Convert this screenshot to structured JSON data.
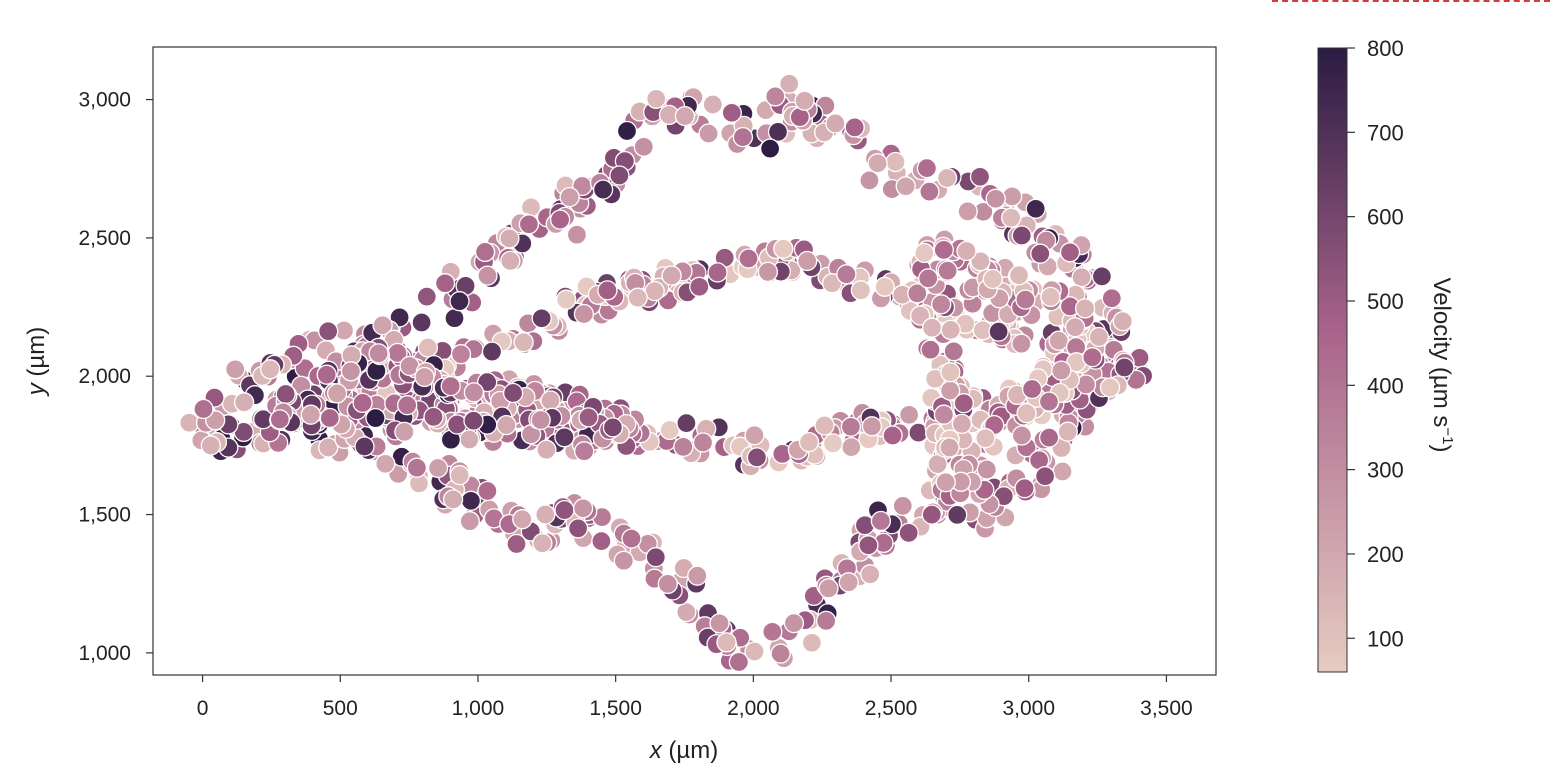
{
  "chart_data": {
    "type": "scatter",
    "title": "",
    "xlabel_var": "x",
    "xlabel_unit": " (µm)",
    "ylabel_var": "y",
    "ylabel_unit": " (µm)",
    "xlim": [
      -180,
      3680
    ],
    "ylim": [
      920,
      3190
    ],
    "x_ticks": [
      0,
      500,
      1000,
      1500,
      2000,
      2500,
      3000,
      3500
    ],
    "x_tick_labels": [
      "0",
      "500",
      "1,000",
      "1,500",
      "2,000",
      "2,500",
      "3,000",
      "3,500"
    ],
    "y_ticks": [
      1000,
      1500,
      2000,
      2500,
      3000
    ],
    "y_tick_labels": [
      "1,000",
      "1,500",
      "2,000",
      "2,500",
      "3,000"
    ],
    "grid": false,
    "colorbar": {
      "label": "Velocity (µm s",
      "label_sup": "−1",
      "label_close": ")",
      "range": [
        60,
        800
      ],
      "ticks": [
        100,
        200,
        300,
        400,
        500,
        600,
        700,
        800
      ],
      "tick_labels": [
        "100",
        "200",
        "300",
        "400",
        "500",
        "600",
        "700",
        "800"
      ],
      "color_low": "#e6cbc2",
      "color_mid": "#a8638a",
      "color_high": "#2a1b42"
    },
    "marker_edge": "#ffffff",
    "trajectory_paths": [
      {
        "name": "outer",
        "points": [
          [
            0,
            1800
          ],
          [
            150,
            1950
          ],
          [
            400,
            2080
          ],
          [
            650,
            2120
          ],
          [
            900,
            2280
          ],
          [
            1100,
            2480
          ],
          [
            1300,
            2580
          ],
          [
            1450,
            2720
          ],
          [
            1600,
            2870
          ],
          [
            1750,
            3000
          ],
          [
            1900,
            2930
          ],
          [
            2050,
            2860
          ],
          [
            2150,
            3010
          ],
          [
            2300,
            2900
          ],
          [
            2450,
            2780
          ],
          [
            2600,
            2700
          ],
          [
            2800,
            2650
          ],
          [
            3000,
            2540
          ],
          [
            3150,
            2420
          ],
          [
            3250,
            2300
          ],
          [
            3300,
            2150
          ],
          [
            3250,
            2000
          ],
          [
            3150,
            1850
          ],
          [
            3050,
            1700
          ],
          [
            2950,
            1560
          ],
          [
            2800,
            1500
          ],
          [
            2650,
            1560
          ],
          [
            2500,
            1480
          ],
          [
            2380,
            1300
          ],
          [
            2250,
            1150
          ],
          [
            2100,
            1040
          ],
          [
            1950,
            1030
          ],
          [
            1800,
            1150
          ],
          [
            1680,
            1280
          ],
          [
            1550,
            1420
          ],
          [
            1350,
            1480
          ],
          [
            1150,
            1450
          ],
          [
            950,
            1560
          ],
          [
            800,
            1680
          ],
          [
            600,
            1790
          ],
          [
            350,
            1800
          ],
          [
            150,
            1780
          ],
          [
            0,
            1800
          ]
        ],
        "count": 520,
        "spread": 70,
        "vmin": 120,
        "vmax": 800
      },
      {
        "name": "inner",
        "points": [
          [
            400,
            1900
          ],
          [
            650,
            1950
          ],
          [
            900,
            2080
          ],
          [
            1150,
            2140
          ],
          [
            1350,
            2240
          ],
          [
            1550,
            2300
          ],
          [
            1800,
            2360
          ],
          [
            2000,
            2420
          ],
          [
            2200,
            2410
          ],
          [
            2450,
            2320
          ],
          [
            2700,
            2250
          ],
          [
            2950,
            2170
          ],
          [
            3150,
            2110
          ],
          [
            3300,
            2060
          ],
          [
            3450,
            2030
          ],
          [
            3300,
            1990
          ],
          [
            3100,
            1930
          ],
          [
            2900,
            1890
          ],
          [
            2700,
            1850
          ],
          [
            2450,
            1820
          ],
          [
            2200,
            1750
          ],
          [
            2000,
            1720
          ],
          [
            1800,
            1770
          ],
          [
            1600,
            1790
          ],
          [
            1400,
            1820
          ],
          [
            1200,
            1860
          ],
          [
            1000,
            1880
          ],
          [
            800,
            1880
          ],
          [
            600,
            1890
          ],
          [
            400,
            1900
          ]
        ],
        "count": 420,
        "spread": 55,
        "vmin": 60,
        "vmax": 700
      },
      {
        "name": "right-lobe",
        "points": [
          [
            2650,
            2450
          ],
          [
            2800,
            2380
          ],
          [
            2950,
            2300
          ],
          [
            3100,
            2260
          ],
          [
            3220,
            2200
          ],
          [
            3150,
            2050
          ],
          [
            3050,
            1950
          ],
          [
            2950,
            1850
          ],
          [
            2850,
            1720
          ],
          [
            2750,
            1600
          ],
          [
            2700,
            1700
          ],
          [
            2720,
            1900
          ],
          [
            2680,
            2100
          ],
          [
            2650,
            2300
          ],
          [
            2650,
            2450
          ]
        ],
        "count": 180,
        "spread": 60,
        "vmin": 60,
        "vmax": 500
      },
      {
        "name": "left-core",
        "points": [
          [
            250,
            1880
          ],
          [
            450,
            1960
          ],
          [
            650,
            2050
          ],
          [
            850,
            2000
          ],
          [
            1000,
            1950
          ],
          [
            1200,
            1920
          ],
          [
            1350,
            1880
          ],
          [
            1500,
            1830
          ],
          [
            1400,
            1780
          ],
          [
            1200,
            1790
          ],
          [
            1000,
            1820
          ],
          [
            800,
            1840
          ],
          [
            600,
            1860
          ],
          [
            400,
            1870
          ],
          [
            250,
            1880
          ]
        ],
        "count": 260,
        "spread": 55,
        "vmin": 150,
        "vmax": 800
      }
    ]
  }
}
